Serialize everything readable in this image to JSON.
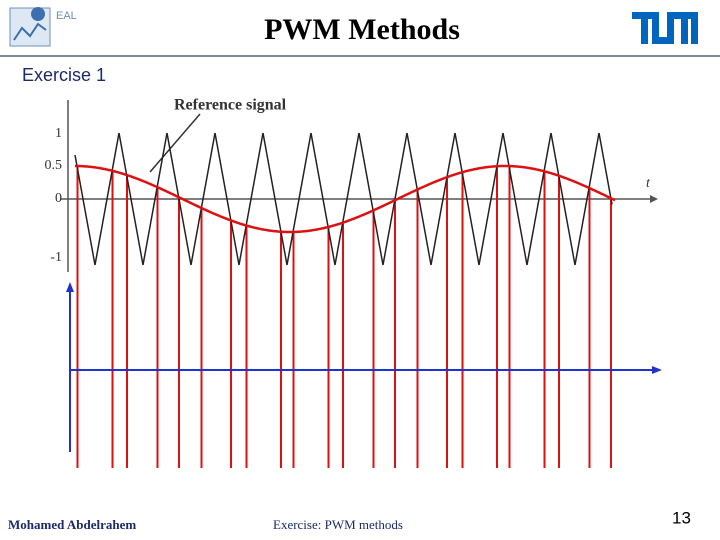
{
  "header": {
    "title": "PWM Methods",
    "logo_text": "EAL"
  },
  "section": "Exercise 1",
  "figure": {
    "annotation": "Reference signal",
    "y_labels": [
      "1",
      "0.5",
      "0",
      "-1"
    ],
    "x_label": "t"
  },
  "footer": {
    "author": "Mohamed Abdelrahem",
    "topic": "Exercise: PWM methods",
    "page": "13"
  }
}
